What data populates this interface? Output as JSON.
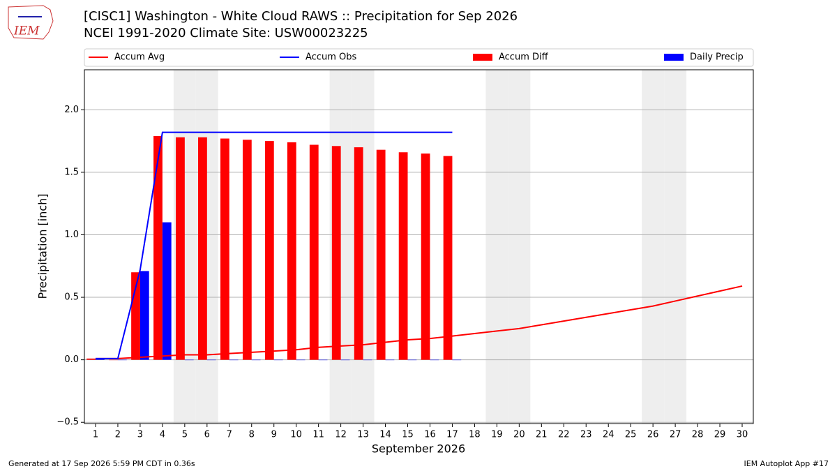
{
  "chart_data": {
    "type": "bar_line",
    "title": "[CISC1] Washington - White Cloud RAWS :: Precipitation for Sep 2026",
    "subtitle": "NCEI 1991-2020 Climate Site: USW00023225",
    "logo_text": "IEM",
    "xlabel": "September 2026",
    "ylabel": "Precipitation [inch]",
    "footer_left": "Generated at 17 Sep 2026 5:59 PM CDT in 0.36s",
    "footer_right": "IEM Autoplot App #17",
    "x": [
      1,
      2,
      3,
      4,
      5,
      6,
      7,
      8,
      9,
      10,
      11,
      12,
      13,
      14,
      15,
      16,
      17,
      18,
      19,
      20,
      21,
      22,
      23,
      24,
      25,
      26,
      27,
      28,
      29,
      30
    ],
    "xlim": [
      0.5,
      30.5
    ],
    "xticks": [
      1,
      2,
      3,
      4,
      5,
      6,
      7,
      8,
      9,
      10,
      11,
      12,
      13,
      14,
      15,
      16,
      17,
      18,
      19,
      20,
      21,
      22,
      23,
      24,
      25,
      26,
      27,
      28,
      29,
      30
    ],
    "ylim": [
      -0.51,
      2.32
    ],
    "yticks": [
      {
        "value": -0.5,
        "label": "−0.5"
      },
      {
        "value": 0,
        "label": "0.0"
      },
      {
        "value": 0.5,
        "label": "0.5"
      },
      {
        "value": 1,
        "label": "1.0"
      },
      {
        "value": 1.5,
        "label": "1.5"
      },
      {
        "value": 2,
        "label": "2.0"
      }
    ],
    "grid": true,
    "shaded_days": [
      5,
      6,
      12,
      13,
      19,
      20,
      26,
      27
    ],
    "shade_color": "#eeeeee",
    "series": [
      {
        "name": "Accum Avg",
        "kind": "line",
        "color": "#ff0000",
        "values": [
          0.01,
          0.01,
          0.02,
          0.03,
          0.04,
          0.04,
          0.05,
          0.06,
          0.07,
          0.08,
          0.1,
          0.11,
          0.12,
          0.14,
          0.16,
          0.17,
          0.19,
          0.21,
          0.23,
          0.25,
          0.28,
          0.31,
          0.34,
          0.37,
          0.4,
          0.43,
          0.47,
          0.51,
          0.55,
          0.59
        ]
      },
      {
        "name": "Accum Obs",
        "kind": "line",
        "color": "#0000ff",
        "values": [
          0.01,
          0.01,
          0.72,
          1.82,
          1.82,
          1.82,
          1.82,
          1.82,
          1.82,
          1.82,
          1.82,
          1.82,
          1.82,
          1.82,
          1.82,
          1.82,
          1.82,
          null,
          null,
          null,
          null,
          null,
          null,
          null,
          null,
          null,
          null,
          null,
          null,
          null
        ]
      },
      {
        "name": "Accum Diff",
        "kind": "bar",
        "side": "left",
        "color": "#ff0000",
        "values": [
          0.01,
          0.0,
          0.7,
          1.79,
          1.78,
          1.78,
          1.77,
          1.76,
          1.75,
          1.74,
          1.72,
          1.71,
          1.7,
          1.68,
          1.66,
          1.65,
          1.63,
          null,
          null,
          null,
          null,
          null,
          null,
          null,
          null,
          null,
          null,
          null,
          null,
          null
        ]
      },
      {
        "name": "Daily Precip",
        "kind": "bar",
        "side": "right",
        "color": "#0000ff",
        "values": [
          0.01,
          0.0,
          0.71,
          1.1,
          0,
          0,
          0,
          0,
          0,
          0,
          0,
          0,
          0,
          0,
          0,
          0,
          0,
          null,
          null,
          null,
          null,
          null,
          null,
          null,
          null,
          null,
          null,
          null,
          null,
          null
        ]
      }
    ]
  }
}
